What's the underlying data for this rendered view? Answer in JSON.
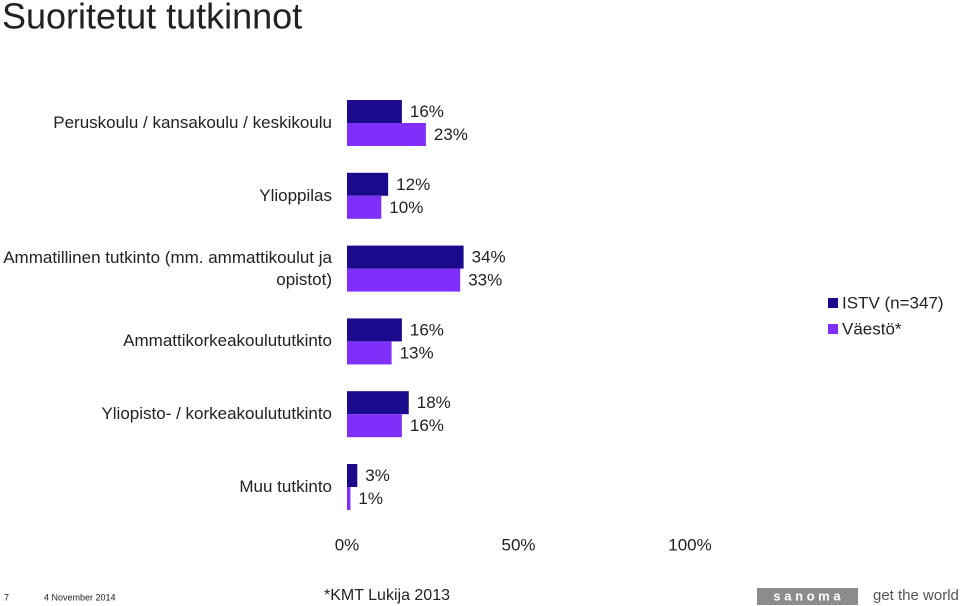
{
  "chart_data": {
    "type": "bar",
    "orientation": "horizontal",
    "title": "Suoritetut tutkinnot",
    "categories": [
      "Peruskoulu / kansakoulu / keskikoulu",
      "Ylioppilas",
      "Ammatillinen tutkinto (mm. ammattikoulut ja opistot)",
      "Ammattikorkeakoulututkinto",
      "Yliopisto- / korkeakoulututkinto",
      "Muu tutkinto"
    ],
    "series": [
      {
        "name": "ISTV (n=347)",
        "color": "#1c0a8c",
        "values": [
          16,
          12,
          34,
          16,
          18,
          3
        ],
        "value_labels": [
          "16%",
          "12%",
          "34%",
          "16%",
          "18%",
          "3%"
        ]
      },
      {
        "name": "Väestö*",
        "color": "#7f2ffa",
        "values": [
          23,
          10,
          33,
          13,
          16,
          1
        ],
        "value_labels": [
          "23%",
          "10%",
          "33%",
          "13%",
          "16%",
          "1%"
        ]
      }
    ],
    "xlim": [
      0,
      100
    ],
    "xticks": [
      {
        "value": 0,
        "label": "0%"
      },
      {
        "value": 50,
        "label": "50%"
      },
      {
        "value": 100,
        "label": "100%"
      }
    ],
    "legend": "right",
    "source": "*KMT Lukija 2013"
  },
  "footer": {
    "page": "7",
    "date": "4 November 2014",
    "logo": "s a n o m a",
    "slogan": "get the world"
  }
}
